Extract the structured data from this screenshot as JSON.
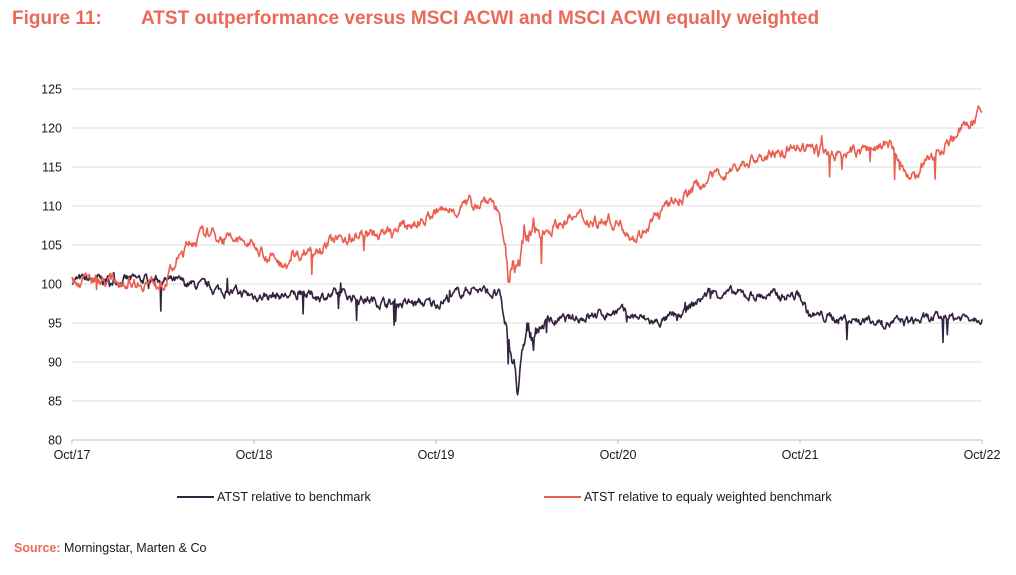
{
  "figure": {
    "label": "Figure 11:",
    "title": "ATST outperformance versus MSCI ACWI and MSCI ACWI equally weighted"
  },
  "source": {
    "label": "Source:",
    "text": "Morningstar, Marten & Co"
  },
  "colors": {
    "title": "#ea6a5a",
    "series_benchmark": "#34223e",
    "series_equal_weighted": "#ea5f4f",
    "grid": "#dcdcdc",
    "axis": "#bfbfbf"
  },
  "chart_data": {
    "type": "line",
    "title": "ATST outperformance versus MSCI ACWI and MSCI ACWI equally weighted",
    "xlabel": "",
    "ylabel": "",
    "ylim": [
      80,
      125
    ],
    "yticks": [
      80,
      85,
      90,
      95,
      100,
      105,
      110,
      115,
      120,
      125
    ],
    "xticks": [
      "Oct/17",
      "Oct/18",
      "Oct/19",
      "Oct/20",
      "Oct/21",
      "Oct/22"
    ],
    "x_range": [
      "Oct/17",
      "Oct/22"
    ],
    "grid": "horizontal",
    "legend_position": "bottom",
    "series": [
      {
        "name": "ATST relative to benchmark",
        "color": "#34223e",
        "x_years_since_start": [
          0,
          0.25,
          0.5,
          0.75,
          1.0,
          1.25,
          1.5,
          1.75,
          2.0,
          2.2,
          2.35,
          2.4,
          2.45,
          2.5,
          2.6,
          2.75,
          3.0,
          3.2,
          3.35,
          3.5,
          3.75,
          4.0,
          4.05,
          4.25,
          4.5,
          4.75,
          5.0
        ],
        "values": [
          100.5,
          100.5,
          100.5,
          99.5,
          98.5,
          98.5,
          98.5,
          97.5,
          97.5,
          99.5,
          98.5,
          92.0,
          86.5,
          93.5,
          95.0,
          95.5,
          96.5,
          95.0,
          96.0,
          99.0,
          98.5,
          98.5,
          96.0,
          95.5,
          95.0,
          95.5,
          96.0
        ]
      },
      {
        "name": "ATST relative to equaly weighted benchmark",
        "color": "#ea5f4f",
        "x_years_since_start": [
          0,
          0.25,
          0.5,
          0.65,
          0.75,
          1.0,
          1.15,
          1.3,
          1.5,
          1.75,
          2.0,
          2.3,
          2.35,
          2.4,
          2.45,
          2.5,
          2.75,
          3.0,
          3.1,
          3.25,
          3.5,
          3.75,
          4.0,
          4.25,
          4.5,
          4.6,
          4.75,
          5.0
        ],
        "values": [
          100.5,
          100.5,
          100.0,
          105.5,
          106.5,
          105.0,
          102.5,
          104.5,
          106.0,
          106.5,
          109.0,
          111.0,
          109.0,
          100.0,
          104.0,
          106.0,
          108.5,
          108.0,
          106.0,
          109.5,
          113.5,
          116.0,
          117.5,
          116.5,
          118.0,
          113.0,
          117.0,
          122.0
        ]
      }
    ]
  },
  "legend": [
    {
      "label": "ATST relative to benchmark"
    },
    {
      "label": "ATST relative to equaly weighted benchmark"
    }
  ]
}
